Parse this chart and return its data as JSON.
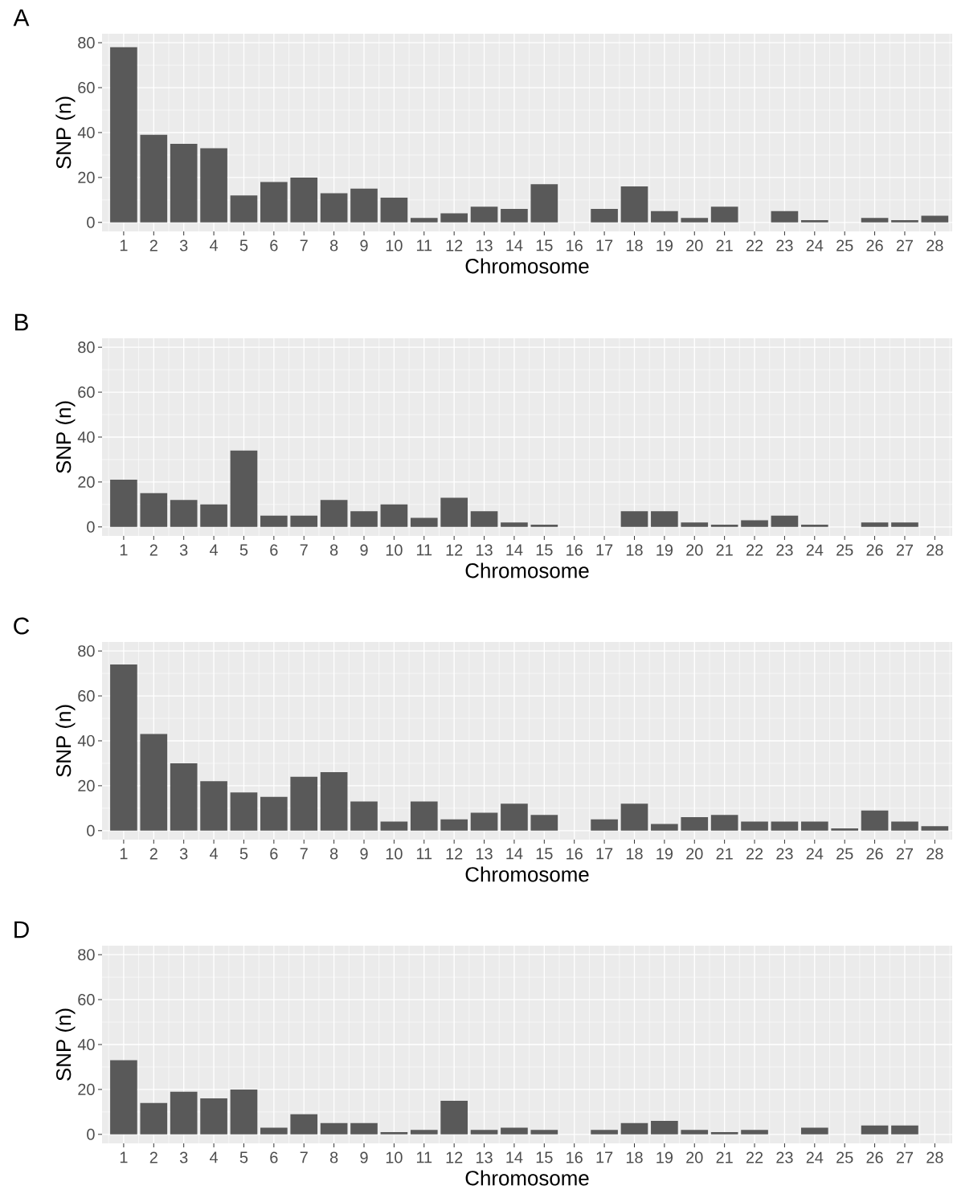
{
  "chart_data": [
    {
      "type": "bar",
      "title": "A",
      "xlabel": "Chromosome",
      "ylabel": "SNP (n)",
      "categories": [
        "1",
        "2",
        "3",
        "4",
        "5",
        "6",
        "7",
        "8",
        "9",
        "10",
        "11",
        "12",
        "13",
        "14",
        "15",
        "16",
        "17",
        "18",
        "19",
        "20",
        "21",
        "22",
        "23",
        "24",
        "25",
        "26",
        "27",
        "28"
      ],
      "values": [
        78,
        39,
        35,
        33,
        12,
        18,
        20,
        13,
        15,
        11,
        2,
        4,
        7,
        6,
        17,
        0,
        6,
        16,
        5,
        2,
        7,
        0,
        5,
        1,
        0,
        2,
        1,
        3
      ],
      "color": "#595959",
      "ylim": [
        -4,
        84
      ],
      "yticks": [
        0,
        20,
        40,
        60,
        80
      ],
      "grid": true
    },
    {
      "type": "bar",
      "title": "B",
      "xlabel": "Chromosome",
      "ylabel": "SNP (n)",
      "categories": [
        "1",
        "2",
        "3",
        "4",
        "5",
        "6",
        "7",
        "8",
        "9",
        "10",
        "11",
        "12",
        "13",
        "14",
        "15",
        "16",
        "17",
        "18",
        "19",
        "20",
        "21",
        "22",
        "23",
        "24",
        "25",
        "26",
        "27",
        "28"
      ],
      "values": [
        21,
        15,
        12,
        10,
        34,
        5,
        5,
        12,
        7,
        10,
        4,
        13,
        7,
        2,
        1,
        0,
        0,
        7,
        7,
        2,
        1,
        3,
        5,
        1,
        0,
        2,
        2,
        0
      ],
      "color": "#595959",
      "ylim": [
        -4,
        84
      ],
      "yticks": [
        0,
        20,
        40,
        60,
        80
      ],
      "grid": true
    },
    {
      "type": "bar",
      "title": "C",
      "xlabel": "Chromosome",
      "ylabel": "SNP (n)",
      "categories": [
        "1",
        "2",
        "3",
        "4",
        "5",
        "6",
        "7",
        "8",
        "9",
        "10",
        "11",
        "12",
        "13",
        "14",
        "15",
        "16",
        "17",
        "18",
        "19",
        "20",
        "21",
        "22",
        "23",
        "24",
        "25",
        "26",
        "27",
        "28"
      ],
      "values": [
        74,
        43,
        30,
        22,
        17,
        15,
        24,
        26,
        13,
        4,
        13,
        5,
        8,
        12,
        7,
        0,
        5,
        12,
        3,
        6,
        7,
        4,
        4,
        4,
        1,
        9,
        4,
        2
      ],
      "color": "#595959",
      "ylim": [
        -4,
        84
      ],
      "yticks": [
        0,
        20,
        40,
        60,
        80
      ],
      "grid": true
    },
    {
      "type": "bar",
      "title": "D",
      "xlabel": "Chromosome",
      "ylabel": "SNP (n)",
      "categories": [
        "1",
        "2",
        "3",
        "4",
        "5",
        "6",
        "7",
        "8",
        "9",
        "10",
        "11",
        "12",
        "13",
        "14",
        "15",
        "16",
        "17",
        "18",
        "19",
        "20",
        "21",
        "22",
        "23",
        "24",
        "25",
        "26",
        "27",
        "28"
      ],
      "values": [
        33,
        14,
        19,
        16,
        20,
        3,
        9,
        5,
        5,
        1,
        2,
        15,
        2,
        3,
        2,
        0,
        2,
        5,
        6,
        2,
        1,
        2,
        0,
        3,
        0,
        4,
        4,
        0
      ],
      "color": "#595959",
      "ylim": [
        -4,
        84
      ],
      "yticks": [
        0,
        20,
        40,
        60,
        80
      ],
      "grid": true
    }
  ]
}
